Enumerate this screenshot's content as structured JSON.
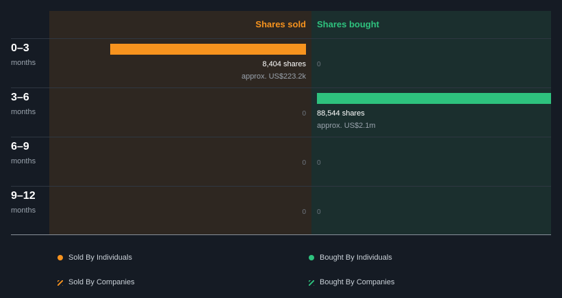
{
  "colors": {
    "sold": "#f7931e",
    "bought": "#2ec27e"
  },
  "chart_data": {
    "type": "bar",
    "title": "",
    "series_headers": {
      "sold": "Shares sold",
      "bought": "Shares bought"
    },
    "categories": [
      {
        "period": "0–3",
        "unit": "months"
      },
      {
        "period": "3–6",
        "unit": "months"
      },
      {
        "period": "6–9",
        "unit": "months"
      },
      {
        "period": "9–12",
        "unit": "months"
      }
    ],
    "series": [
      {
        "name": "Shares sold",
        "values": [
          8404,
          0,
          0,
          0
        ],
        "labels": [
          "8,404 shares",
          "0",
          "0",
          "0"
        ],
        "approx": [
          "approx. US$223.2k",
          "",
          "",
          ""
        ]
      },
      {
        "name": "Shares bought",
        "values": [
          0,
          88544,
          0,
          0
        ],
        "labels": [
          "0",
          "88,544 shares",
          "0",
          "0"
        ],
        "approx": [
          "",
          "approx. US$2.1m",
          "",
          ""
        ]
      }
    ],
    "legend": [
      {
        "label": "Sold By Individuals",
        "icon": "orange-dot-icon"
      },
      {
        "label": "Bought By Individuals",
        "icon": "green-dot-icon"
      },
      {
        "label": "Sold By Companies",
        "icon": "orange-hatch-icon"
      },
      {
        "label": "Bought By Companies",
        "icon": "green-hatch-icon"
      }
    ],
    "legend_position": "bottom"
  }
}
